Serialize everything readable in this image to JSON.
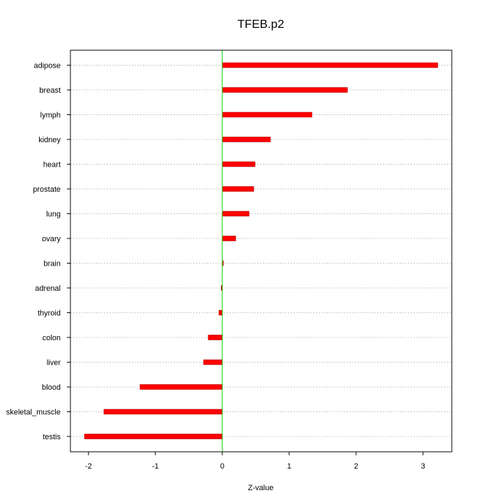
{
  "chart_data": {
    "type": "bar",
    "orientation": "horizontal",
    "title": "TFEB.p2",
    "xlabel": "Z-value",
    "ylabel": "",
    "categories": [
      "adipose",
      "breast",
      "lymph",
      "kidney",
      "heart",
      "prostate",
      "lung",
      "ovary",
      "brain",
      "adrenal",
      "thyroid",
      "colon",
      "liver",
      "blood",
      "skeletal_muscle",
      "testis"
    ],
    "values": [
      3.22,
      1.87,
      1.34,
      0.72,
      0.49,
      0.47,
      0.4,
      0.2,
      0.01,
      -0.01,
      -0.05,
      -0.21,
      -0.28,
      -1.23,
      -1.77,
      -2.06
    ],
    "xlim": [
      -2.27,
      3.43
    ],
    "xticks": [
      -2,
      -1,
      0,
      1,
      2,
      3
    ],
    "xtick_labels": [
      "-2",
      "-1",
      "0",
      "1",
      "2",
      "3"
    ],
    "grid": "horizontal-dotted",
    "colors": {
      "bar": "#ff0000",
      "bar_edge": "#b00000",
      "zero_line": "#00cc00",
      "grid": "#c8c8c8",
      "frame": "#000000"
    }
  }
}
